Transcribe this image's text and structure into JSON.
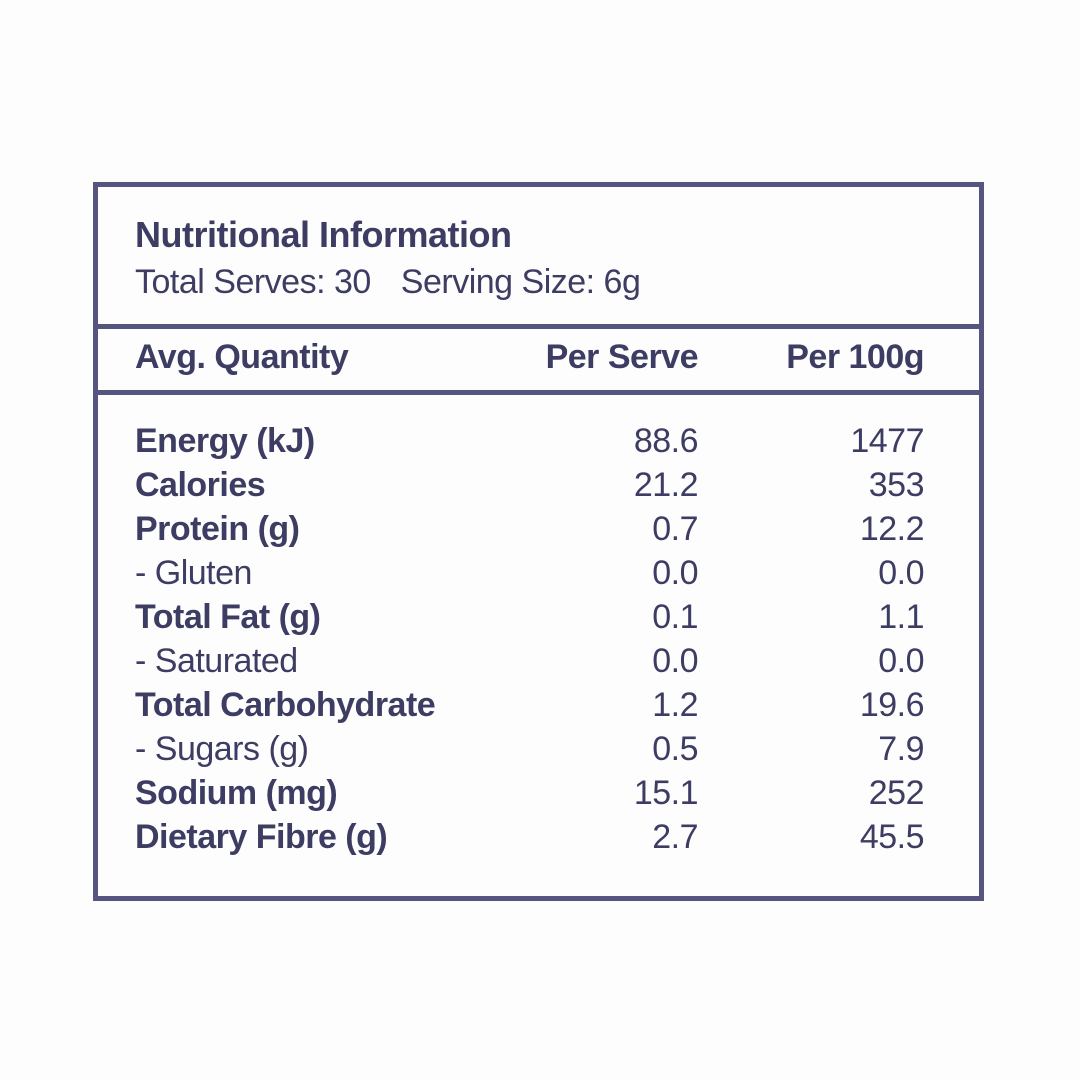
{
  "colors": {
    "background": "#fdfdfd",
    "border": "#55557f",
    "text": "#3d3d63"
  },
  "header": {
    "title": "Nutritional Information",
    "total_serves": "Total Serves: 30",
    "serving_size": "Serving Size: 6g"
  },
  "table": {
    "columns": [
      "Avg. Quantity",
      "Per Serve",
      "Per 100g"
    ],
    "rows": [
      {
        "label": "Energy (kJ)",
        "per_serve": "88.6",
        "per_100g": "1477"
      },
      {
        "label": "Calories",
        "per_serve": "21.2",
        "per_100g": "353"
      },
      {
        "label": "Protein (g)",
        "per_serve": "0.7",
        "per_100g": "12.2"
      },
      {
        "label": "- Gluten",
        "per_serve": "0.0",
        "per_100g": "0.0"
      },
      {
        "label": "Total Fat (g)",
        "per_serve": "0.1",
        "per_100g": "1.1"
      },
      {
        "label": "- Saturated",
        "per_serve": "0.0",
        "per_100g": "0.0"
      },
      {
        "label": "Total Carbohydrate",
        "per_serve": "1.2",
        "per_100g": "19.6"
      },
      {
        "label": "- Sugars (g)",
        "per_serve": "0.5",
        "per_100g": "7.9"
      },
      {
        "label": "Sodium (mg)",
        "per_serve": "15.1",
        "per_100g": "252"
      },
      {
        "label": "Dietary Fibre (g)",
        "per_serve": "2.7",
        "per_100g": "45.5"
      }
    ]
  }
}
